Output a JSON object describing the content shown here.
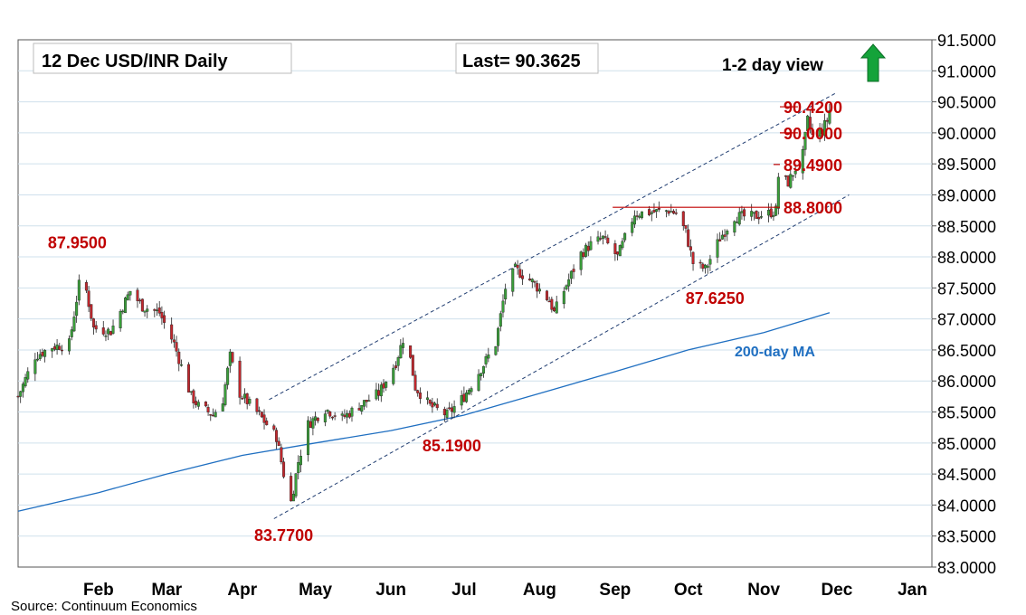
{
  "header": {
    "title": "12 Dec  USD/INR  Daily",
    "last": "Last= 90.3625",
    "view": "1-2 day view"
  },
  "source": "Source: Continuum Economics",
  "chart_data": {
    "type": "candlestick",
    "title": "12 Dec  USD/INR  Daily",
    "x_ticks": [
      "Feb",
      "Mar",
      "Apr",
      "May",
      "Jun",
      "Jul",
      "Aug",
      "Sep",
      "Oct",
      "Nov",
      "Dec",
      "Jan"
    ],
    "x_range": [
      "2025-01-13",
      "2026-01-23"
    ],
    "y_ticks": [
      "83.0000",
      "83.5000",
      "84.0000",
      "84.5000",
      "85.0000",
      "85.5000",
      "86.0000",
      "86.5000",
      "87.0000",
      "87.5000",
      "88.0000",
      "88.5000",
      "89.0000",
      "89.5000",
      "90.0000",
      "90.5000",
      "91.0000",
      "91.5000"
    ],
    "ylim": [
      83.0,
      91.5
    ],
    "axis_side": "right",
    "grid": "horizontal",
    "close_path": [
      [
        "2025-01-13",
        85.75
      ],
      [
        "2025-01-20",
        86.4
      ],
      [
        "2025-01-27",
        86.55
      ],
      [
        "2025-02-03",
        86.6
      ],
      [
        "2025-02-07",
        87.55
      ],
      [
        "2025-02-10",
        87.45
      ],
      [
        "2025-02-13",
        86.85
      ],
      [
        "2025-02-20",
        86.8
      ],
      [
        "2025-02-28",
        87.45
      ],
      [
        "2025-03-05",
        87.2
      ],
      [
        "2025-03-12",
        87.1
      ],
      [
        "2025-03-18",
        86.6
      ],
      [
        "2025-03-25",
        85.75
      ],
      [
        "2025-03-28",
        85.6
      ],
      [
        "2025-04-03",
        85.45
      ],
      [
        "2025-04-07",
        85.7
      ],
      [
        "2025-04-10",
        86.4
      ],
      [
        "2025-04-14",
        85.8
      ],
      [
        "2025-04-22",
        85.45
      ],
      [
        "2025-04-29",
        85.1
      ],
      [
        "2025-05-02",
        84.5
      ],
      [
        "2025-05-05",
        84.05
      ],
      [
        "2025-05-08",
        84.7
      ],
      [
        "2025-05-12",
        85.3
      ],
      [
        "2025-05-19",
        85.55
      ],
      [
        "2025-05-26",
        85.4
      ],
      [
        "2025-06-02",
        85.6
      ],
      [
        "2025-06-10",
        85.8
      ],
      [
        "2025-06-17",
        86.3
      ],
      [
        "2025-06-21",
        86.8
      ],
      [
        "2025-06-25",
        85.9
      ],
      [
        "2025-07-01",
        85.6
      ],
      [
        "2025-07-08",
        85.45
      ],
      [
        "2025-07-15",
        85.75
      ],
      [
        "2025-07-22",
        86.2
      ],
      [
        "2025-07-28",
        86.6
      ],
      [
        "2025-08-01",
        87.5
      ],
      [
        "2025-08-05",
        87.8
      ],
      [
        "2025-08-12",
        87.6
      ],
      [
        "2025-08-19",
        87.3
      ],
      [
        "2025-08-21",
        87.1
      ],
      [
        "2025-08-26",
        87.55
      ],
      [
        "2025-09-01",
        88.05
      ],
      [
        "2025-09-05",
        88.2
      ],
      [
        "2025-09-10",
        88.3
      ],
      [
        "2025-09-16",
        88.0
      ],
      [
        "2025-09-23",
        88.7
      ],
      [
        "2025-09-30",
        88.72
      ],
      [
        "2025-10-07",
        88.75
      ],
      [
        "2025-10-10",
        88.7
      ],
      [
        "2025-10-14",
        88.4
      ],
      [
        "2025-10-17",
        87.9
      ],
      [
        "2025-10-22",
        87.8
      ],
      [
        "2025-10-28",
        88.3
      ],
      [
        "2025-11-03",
        88.65
      ],
      [
        "2025-11-10",
        88.65
      ],
      [
        "2025-11-17",
        88.7
      ],
      [
        "2025-11-20",
        88.75
      ],
      [
        "2025-11-21",
        89.3
      ],
      [
        "2025-11-25",
        89.2
      ],
      [
        "2025-12-01",
        89.65
      ],
      [
        "2025-12-03",
        90.2
      ],
      [
        "2025-12-05",
        89.95
      ],
      [
        "2025-12-09",
        90.05
      ],
      [
        "2025-12-11",
        90.2
      ],
      [
        "2025-12-12",
        90.36
      ]
    ],
    "ma200": {
      "label": "200-day MA",
      "points": [
        [
          "2025-01-13",
          83.9
        ],
        [
          "2025-02-15",
          84.2
        ],
        [
          "2025-03-15",
          84.5
        ],
        [
          "2025-04-15",
          84.8
        ],
        [
          "2025-05-15",
          85.0
        ],
        [
          "2025-06-15",
          85.2
        ],
        [
          "2025-07-15",
          85.45
        ],
        [
          "2025-08-15",
          85.8
        ],
        [
          "2025-09-15",
          86.15
        ],
        [
          "2025-10-15",
          86.5
        ],
        [
          "2025-11-15",
          86.78
        ],
        [
          "2025-12-12",
          87.1
        ]
      ]
    },
    "channel": {
      "upper": [
        [
          "2025-04-26",
          85.7
        ],
        [
          "2025-12-15",
          90.65
        ]
      ],
      "lower": [
        [
          "2025-04-28",
          83.78
        ],
        [
          "2025-12-20",
          89.0
        ]
      ]
    },
    "levels": [
      {
        "value": 90.42,
        "label": "90.4200",
        "from": "2025-11-29"
      },
      {
        "value": 90.0,
        "label": "90.0000",
        "from": "2025-11-29"
      },
      {
        "value": 89.49,
        "label": "89.4900",
        "from": "2025-11-19"
      },
      {
        "value": 88.8,
        "label": "88.8000",
        "from": "2025-09-14"
      }
    ],
    "annotations": [
      {
        "text": "87.9500",
        "x": "2025-02-10",
        "y": 87.95
      },
      {
        "text": "83.7700",
        "x": "2025-05-02",
        "y": 83.77
      },
      {
        "text": "85.1900",
        "x": "2025-07-10",
        "y": 85.19
      },
      {
        "text": "87.6250",
        "x": "2025-10-26",
        "y": 87.625
      }
    ],
    "trend_arrow": "up",
    "colors": {
      "up": "#3a9e3a",
      "down": "#c0272d",
      "level": "#c00000",
      "ma": "#1f6fc1",
      "channel": "#1f3c70",
      "arrow": "#14a33a"
    }
  }
}
